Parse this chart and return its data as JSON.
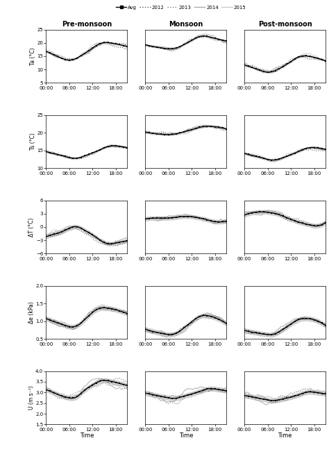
{
  "seasons": [
    "Pre-monsoon",
    "Monsoon",
    "Post-monsoon"
  ],
  "ylabels": [
    "Ta (°C)",
    "Ts (°C)",
    "ΔT (°C)",
    "Δe (kPa)",
    "U (m s⁻¹)"
  ],
  "ylims": [
    [
      [
        5,
        25
      ],
      [
        5,
        25
      ],
      [
        5,
        25
      ]
    ],
    [
      [
        10,
        25
      ],
      [
        10,
        25
      ],
      [
        10,
        25
      ]
    ],
    [
      [
        -6,
        6
      ],
      [
        -6,
        6
      ],
      [
        -6,
        6
      ]
    ],
    [
      [
        0.5,
        2.0
      ],
      [
        0.5,
        2.0
      ],
      [
        0.5,
        2.0
      ]
    ],
    [
      [
        1.5,
        4.0
      ],
      [
        1.5,
        4.0
      ],
      [
        1.5,
        4.0
      ]
    ]
  ],
  "yticks": [
    [
      [
        5,
        10,
        15,
        20,
        25
      ],
      [
        5,
        10,
        15,
        20,
        25
      ],
      [
        5,
        10,
        15,
        20,
        25
      ]
    ],
    [
      [
        10,
        15,
        20,
        25
      ],
      [
        10,
        15,
        20,
        25
      ],
      [
        10,
        15,
        20,
        25
      ]
    ],
    [
      [
        -6,
        -3,
        0,
        3,
        6
      ],
      [
        -6,
        -3,
        0,
        3,
        6
      ],
      [
        -6,
        -3,
        0,
        3,
        6
      ]
    ],
    [
      [
        0.5,
        1.0,
        1.5,
        2.0
      ],
      [
        0.5,
        1.0,
        1.5,
        2.0
      ],
      [
        0.5,
        1.0,
        1.5,
        2.0
      ]
    ],
    [
      [
        1.5,
        2.0,
        2.5,
        3.0,
        3.5,
        4.0
      ],
      [
        1.5,
        2.0,
        2.5,
        3.0,
        3.5,
        4.0
      ],
      [
        1.5,
        2.0,
        2.5,
        3.0,
        3.5,
        4.0
      ]
    ]
  ],
  "legend_labels": [
    "Avg",
    "2012",
    "2013",
    "2014",
    "2015"
  ]
}
